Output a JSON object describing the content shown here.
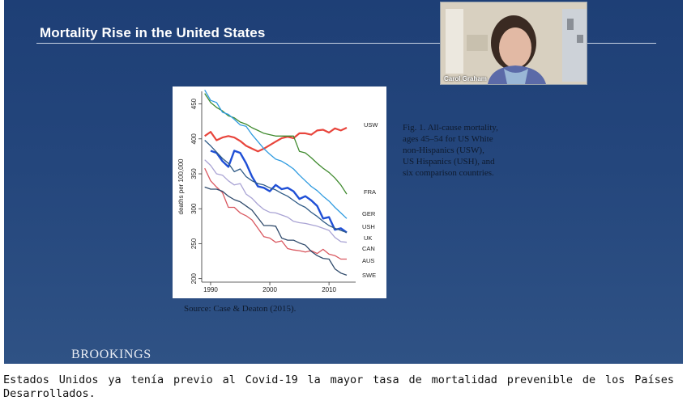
{
  "slide": {
    "title": "Mortality Rise in the United States",
    "brand": "BROOKINGS",
    "caption_lines": [
      "Fig. 1. All-cause mortality,",
      "ages 45–54 for US White",
      "non-Hispanics (USW),",
      "US Hispanics (USH), and",
      "six comparison countries."
    ],
    "source": "Source: Case & Deaton (2015)."
  },
  "video": {
    "speaker_name": "Carol Graham"
  },
  "subtitle": "Estados Unidos ya tenía previo al Covid-19 la mayor tasa de mortalidad prevenible de los Países Desarrollados.",
  "colors": {
    "USW": "#e8453c",
    "FRA": "#3f8a2e",
    "GER": "#2f9be0",
    "USH": "#1f4fd6",
    "UK": "#2e5a86",
    "CAN": "#a9a3d4",
    "AUS": "#d9575f",
    "SWE": "#2f4a6b"
  },
  "chart_data": {
    "type": "line",
    "ylabel": "deaths per 100,000",
    "xlim": [
      1988.5,
      2014.5
    ],
    "ylim": [
      195,
      468
    ],
    "xticks": [
      1990,
      2000,
      2010
    ],
    "yticks": [
      200,
      250,
      300,
      350,
      400,
      450
    ],
    "grid": false,
    "legend": "end-labels",
    "series": [
      {
        "name": "USW",
        "x": [
          1989,
          1990,
          1991,
          1992,
          1993,
          1994,
          1995,
          1996,
          1997,
          1998,
          1999,
          2000,
          2001,
          2002,
          2003,
          2004,
          2005,
          2006,
          2007,
          2008,
          2009,
          2010,
          2011,
          2012,
          2013
        ],
        "y": [
          404,
          410,
          398,
          402,
          404,
          402,
          397,
          390,
          386,
          382,
          386,
          391,
          396,
          401,
          403,
          401,
          408,
          408,
          406,
          412,
          413,
          409,
          415,
          412,
          416
        ]
      },
      {
        "name": "FRA",
        "x": [
          1989,
          1990,
          1991,
          1992,
          1993,
          1994,
          1995,
          1996,
          1997,
          1998,
          1999,
          2000,
          2001,
          2002,
          2003,
          2004,
          2005,
          2006,
          2007,
          2008,
          2009,
          2010,
          2011,
          2012,
          2013
        ],
        "y": [
          465,
          452,
          445,
          440,
          433,
          430,
          424,
          421,
          416,
          412,
          408,
          406,
          404,
          404,
          404,
          404,
          382,
          380,
          373,
          365,
          358,
          352,
          344,
          334,
          321
        ]
      },
      {
        "name": "GER",
        "x": [
          1989,
          1990,
          1991,
          1992,
          1993,
          1994,
          1995,
          1996,
          1997,
          1998,
          1999,
          2000,
          2001,
          2002,
          2003,
          2004,
          2005,
          2006,
          2007,
          2008,
          2009,
          2010,
          2011,
          2012,
          2013
        ],
        "y": [
          470,
          455,
          452,
          438,
          435,
          428,
          420,
          418,
          406,
          396,
          386,
          378,
          371,
          368,
          363,
          357,
          348,
          340,
          332,
          326,
          318,
          311,
          302,
          294,
          286
        ]
      },
      {
        "name": "USH",
        "x": [
          1990,
          1991,
          1992,
          1993,
          1994,
          1995,
          1996,
          1997,
          1998,
          1999,
          2000,
          2001,
          2002,
          2003,
          2004,
          2005,
          2006,
          2007,
          2008,
          2009,
          2010,
          2011,
          2012,
          2013
        ],
        "y": [
          383,
          380,
          368,
          360,
          383,
          380,
          365,
          346,
          332,
          330,
          325,
          334,
          328,
          330,
          325,
          314,
          318,
          312,
          304,
          286,
          288,
          270,
          272,
          266
        ]
      },
      {
        "name": "UK",
        "x": [
          1989,
          1990,
          1991,
          1992,
          1993,
          1994,
          1995,
          1996,
          1997,
          1998,
          1999,
          2000,
          2001,
          2002,
          2003,
          2004,
          2005,
          2006,
          2007,
          2008,
          2009,
          2010,
          2011,
          2012,
          2013
        ],
        "y": [
          398,
          390,
          381,
          372,
          365,
          353,
          357,
          346,
          340,
          336,
          334,
          330,
          327,
          322,
          318,
          312,
          306,
          302,
          295,
          289,
          282,
          276,
          272,
          269,
          266
        ]
      },
      {
        "name": "CAN",
        "x": [
          1989,
          1990,
          1991,
          1992,
          1993,
          1994,
          1995,
          1996,
          1997,
          1998,
          1999,
          2000,
          2001,
          2002,
          2003,
          2004,
          2005,
          2006,
          2007,
          2008,
          2009,
          2010,
          2011,
          2012,
          2013
        ],
        "y": [
          370,
          362,
          350,
          348,
          340,
          334,
          336,
          321,
          315,
          306,
          299,
          295,
          294,
          291,
          288,
          282,
          280,
          279,
          277,
          275,
          272,
          269,
          259,
          253,
          252
        ]
      },
      {
        "name": "AUS",
        "x": [
          1989,
          1990,
          1991,
          1992,
          1993,
          1994,
          1995,
          1996,
          1997,
          1998,
          1999,
          2000,
          2001,
          2002,
          2003,
          2004,
          2005,
          2006,
          2007,
          2008,
          2009,
          2010,
          2011,
          2012,
          2013
        ],
        "y": [
          358,
          340,
          331,
          323,
          302,
          302,
          294,
          290,
          284,
          272,
          260,
          258,
          252,
          254,
          243,
          241,
          240,
          238,
          240,
          236,
          242,
          235,
          233,
          228,
          228
        ]
      },
      {
        "name": "SWE",
        "x": [
          1989,
          1990,
          1991,
          1992,
          1993,
          1994,
          1995,
          1996,
          1997,
          1998,
          1999,
          2000,
          2001,
          2002,
          2003,
          2004,
          2005,
          2006,
          2007,
          2008,
          2009,
          2010,
          2011,
          2012,
          2013
        ],
        "y": [
          331,
          328,
          328,
          325,
          318,
          313,
          310,
          304,
          298,
          287,
          276,
          276,
          275,
          258,
          255,
          255,
          251,
          248,
          239,
          233,
          229,
          228,
          214,
          208,
          205
        ]
      }
    ]
  }
}
